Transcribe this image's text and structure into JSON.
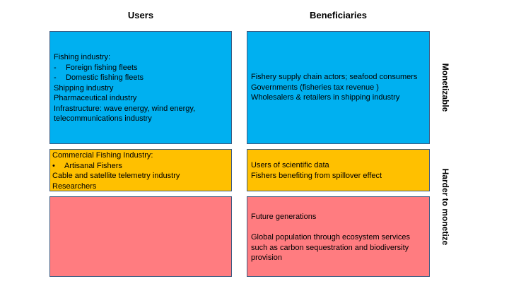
{
  "headers": {
    "users": "Users",
    "beneficiaries": "Beneficiaries"
  },
  "side_labels": {
    "monetizable": "Monetizable",
    "harder": "Harder to monetize"
  },
  "monetizable": {
    "users": {
      "heading": "Fishing industry:",
      "sub_items": [
        "Foreign fishing fleets",
        "Domestic fishing fleets"
      ],
      "sub_bullet": "-",
      "items": [
        "Shipping industry",
        "Pharmaceutical industry",
        "Infrastructure: wave energy, wind energy,",
        "telecommunications industry"
      ]
    },
    "beneficiaries": {
      "items": [
        "Fishery supply chain actors; seafood consumers",
        "Governments (fisheries tax revenue )",
        "Wholesalers & retailers in shipping industry"
      ]
    }
  },
  "middle": {
    "users": {
      "heading": "Commercial Fishing Industry:",
      "sub_items": [
        "Artisanal Fishers"
      ],
      "sub_bullet": "•",
      "items": [
        "Cable and satellite telemetry industry",
        "Researchers"
      ]
    },
    "beneficiaries": {
      "items": [
        "Users of scientific data",
        "Fishers benefiting from spillover effect"
      ]
    }
  },
  "harder": {
    "beneficiaries": {
      "item_1": "Future generations",
      "item_2_lines": [
        "Global population through ecosystem services",
        "such as carbon sequestration and biodiversity",
        "provision"
      ]
    }
  },
  "colors": {
    "blue": "#00b0f0",
    "yellow": "#ffc000",
    "red": "#ff7c80"
  }
}
